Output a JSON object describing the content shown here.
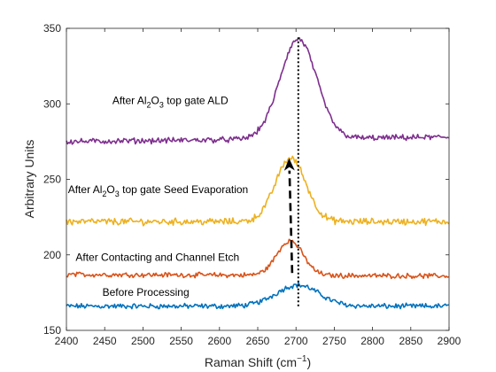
{
  "chart_data": {
    "type": "line",
    "title": "",
    "xlabel": "Raman Shift (cm",
    "xlabel_sup": "−1",
    "xlabel_tail": ")",
    "ylabel": "Arbitrary Units",
    "xlim": [
      2400,
      2900
    ],
    "ylim": [
      150,
      350
    ],
    "xticks": [
      2400,
      2450,
      2500,
      2550,
      2600,
      2650,
      2700,
      2750,
      2800,
      2850,
      2900
    ],
    "yticks": [
      150,
      200,
      250,
      300,
      350
    ],
    "grid": false,
    "series": [
      {
        "color": "#0072bd",
        "baseline": 166,
        "slope": 0.0,
        "peaks": [
          {
            "center": 2702,
            "height": 14,
            "width": 28
          }
        ],
        "noise": 1.4,
        "points": [
          [
            2400,
            166
          ],
          [
            2600,
            167
          ],
          [
            2660,
            170
          ],
          [
            2685,
            175
          ],
          [
            2700,
            180
          ],
          [
            2715,
            177
          ],
          [
            2740,
            169
          ],
          [
            2800,
            166
          ],
          [
            2900,
            166
          ]
        ]
      },
      {
        "color": "#d95319",
        "baseline": 187,
        "slope": -0.002,
        "peaks": [
          {
            "center": 2692,
            "height": 23,
            "width": 17
          }
        ],
        "noise": 1.3,
        "points": [
          [
            2400,
            187
          ],
          [
            2600,
            186
          ],
          [
            2670,
            192
          ],
          [
            2692,
            210
          ],
          [
            2712,
            197
          ],
          [
            2750,
            187
          ],
          [
            2900,
            185
          ]
        ]
      },
      {
        "color": "#edb120",
        "baseline": 222,
        "slope": 0.0,
        "peaks": [
          {
            "center": 2693,
            "height": 42,
            "width": 20
          }
        ],
        "noise": 1.8,
        "points": [
          [
            2400,
            222
          ],
          [
            2600,
            223
          ],
          [
            2670,
            232
          ],
          [
            2693,
            264
          ],
          [
            2715,
            238
          ],
          [
            2760,
            223
          ],
          [
            2900,
            221
          ]
        ]
      },
      {
        "color": "#7e2f8e",
        "baseline": 275,
        "slope": 0.006,
        "peaks": [
          {
            "center": 2703,
            "height": 66,
            "width": 24
          }
        ],
        "noise": 1.5,
        "points": [
          [
            2400,
            275
          ],
          [
            2600,
            277
          ],
          [
            2670,
            290
          ],
          [
            2703,
            342
          ],
          [
            2725,
            305
          ],
          [
            2770,
            281
          ],
          [
            2900,
            279
          ]
        ]
      }
    ],
    "arrow": {
      "from": [
        2695,
        188
      ],
      "to": [
        2691,
        264
      ],
      "style": "dashed"
    },
    "vline": {
      "x": 2703,
      "y_range": [
        166,
        344
      ],
      "style": "dotted"
    },
    "annotations": [
      {
        "text_pre": "After Al",
        "sub1": "2",
        "mid": "O",
        "sub2": "3",
        "text_post": " top gate ALD",
        "x": 2460,
        "y": 300
      },
      {
        "text_pre": "After Al",
        "sub1": "2",
        "mid": "O",
        "sub2": "3",
        "text_post": " top gate Seed Evaporation",
        "x": 2402,
        "y": 241
      },
      {
        "text": "After Contacting and Channel Etch",
        "x": 2412,
        "y": 196
      },
      {
        "text": "Before Processing",
        "x": 2447,
        "y": 173
      }
    ]
  }
}
